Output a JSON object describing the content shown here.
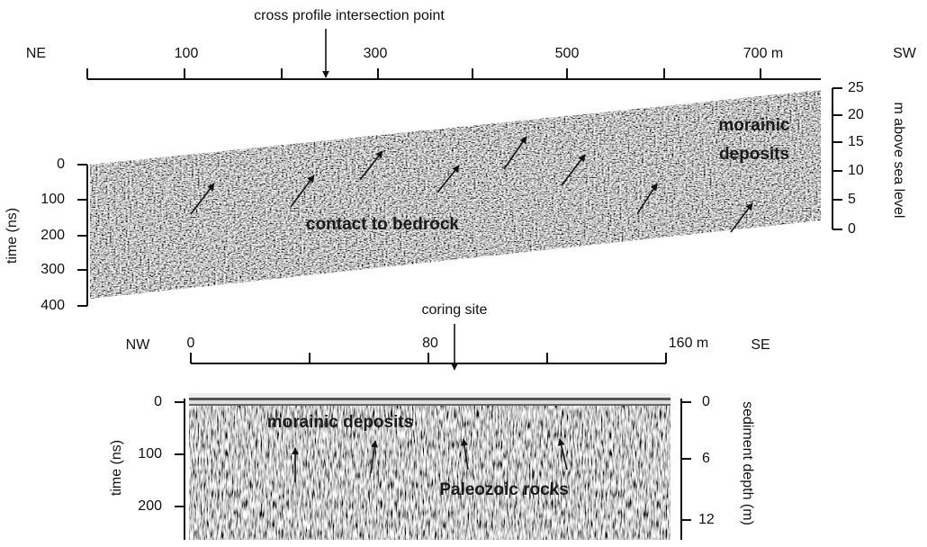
{
  "top_panel": {
    "pointer_label": "cross profile intersection point",
    "left_direction": "NE",
    "right_direction": "SW",
    "distance_ticks": [
      "100",
      "300",
      "500",
      "700 m"
    ],
    "left_axis_title": "time (ns)",
    "left_ticks": [
      "0",
      "100",
      "200",
      "300",
      "400"
    ],
    "right_axis_title": "m above sea level",
    "right_ticks": [
      "25",
      "20",
      "15",
      "10",
      "5",
      "0"
    ],
    "annotations": {
      "deposits": [
        "morainic",
        "deposits"
      ],
      "contact": "contact to bedrock"
    }
  },
  "bottom_panel": {
    "pointer_label": "coring site",
    "left_direction": "NW",
    "right_direction": "SE",
    "distance_ticks": [
      "0",
      "80",
      "160 m"
    ],
    "left_axis_title": "time (ns)",
    "left_ticks": [
      "0",
      "100",
      "200"
    ],
    "right_axis_title": "sediment depth (m)",
    "right_ticks": [
      "0",
      "6",
      "12"
    ],
    "annotations": {
      "deposits": "morainic deposits",
      "rocks": "Paleozoic rocks"
    }
  }
}
